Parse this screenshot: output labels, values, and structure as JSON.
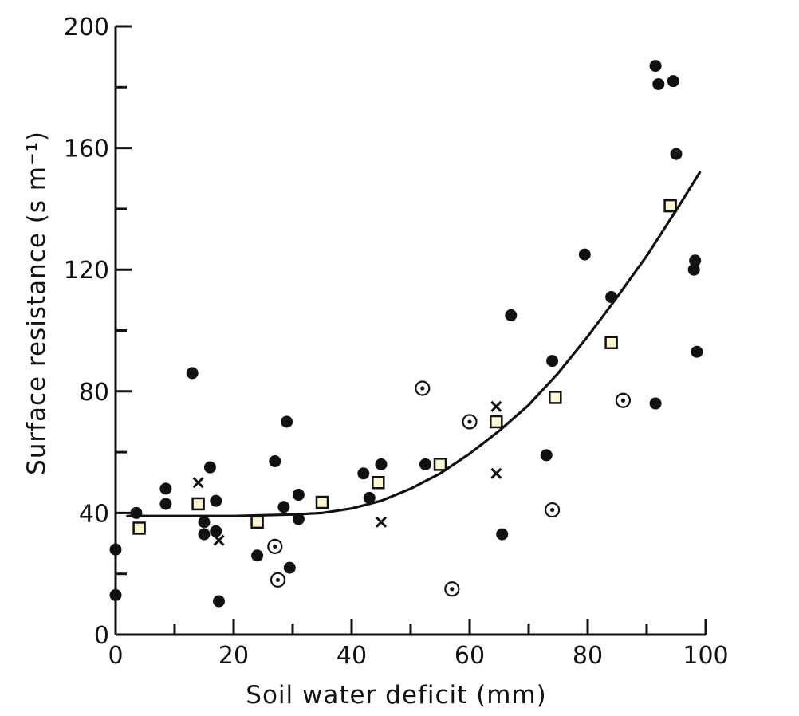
{
  "chart_data": {
    "type": "scatter",
    "title": "",
    "xlabel": "Soil water deficit (mm)",
    "ylabel": "Surface resistance (s m⁻¹)",
    "xlim": [
      0,
      100
    ],
    "ylim": [
      0,
      200
    ],
    "x_ticks": [
      "0",
      "20",
      "40",
      "60",
      "80",
      "100"
    ],
    "y_ticks": [
      "0",
      "40",
      "80",
      "120",
      "160",
      "200"
    ],
    "grid": false,
    "legend": "none",
    "series": [
      {
        "marker": "filled-circle",
        "points": [
          [
            0,
            28
          ],
          [
            0,
            13
          ],
          [
            3.5,
            40
          ],
          [
            8.5,
            43
          ],
          [
            8.5,
            48
          ],
          [
            13,
            86
          ],
          [
            15,
            37
          ],
          [
            15,
            33
          ],
          [
            16,
            55
          ],
          [
            17,
            44
          ],
          [
            17,
            34
          ],
          [
            17.5,
            11
          ],
          [
            24,
            26
          ],
          [
            27,
            57
          ],
          [
            28.5,
            42
          ],
          [
            29,
            70
          ],
          [
            29.5,
            22
          ],
          [
            31,
            38
          ],
          [
            31,
            46
          ],
          [
            42,
            53
          ],
          [
            43,
            45
          ],
          [
            45,
            56
          ],
          [
            52.5,
            56
          ],
          [
            65.5,
            33
          ],
          [
            67,
            105
          ],
          [
            73,
            59
          ],
          [
            74,
            90
          ],
          [
            79.5,
            125
          ],
          [
            84,
            111
          ],
          [
            91.5,
            76
          ],
          [
            91.5,
            187
          ],
          [
            92,
            181
          ],
          [
            94.5,
            182
          ],
          [
            95,
            158
          ],
          [
            98,
            120
          ],
          [
            98.2,
            123
          ],
          [
            98.5,
            93
          ]
        ]
      },
      {
        "marker": "open-square",
        "points": [
          [
            4,
            35
          ],
          [
            14,
            43
          ],
          [
            24,
            37
          ],
          [
            35,
            43.5
          ],
          [
            44.5,
            50
          ],
          [
            55,
            56
          ],
          [
            64.5,
            70
          ],
          [
            74.5,
            78
          ],
          [
            84,
            96
          ],
          [
            94,
            141
          ]
        ]
      },
      {
        "marker": "cross",
        "points": [
          [
            14,
            50
          ],
          [
            17.5,
            31
          ],
          [
            45,
            37
          ],
          [
            64.5,
            75
          ],
          [
            64.5,
            53
          ]
        ]
      },
      {
        "marker": "dotted-circle",
        "points": [
          [
            27,
            29
          ],
          [
            27.5,
            18
          ],
          [
            52,
            81
          ],
          [
            57,
            15
          ],
          [
            60,
            70
          ],
          [
            74,
            41
          ],
          [
            86,
            77
          ]
        ]
      }
    ],
    "fit_curve": {
      "x": [
        2,
        10,
        20,
        30,
        35,
        40,
        45,
        50,
        55,
        60,
        65,
        70,
        75,
        80,
        85,
        90,
        95,
        99
      ],
      "y": [
        39,
        39,
        39,
        39.5,
        40,
        41.5,
        44,
        48,
        53,
        59.5,
        67,
        75.5,
        86,
        98,
        111,
        124.5,
        139.5,
        152
      ]
    },
    "colors": {
      "ink": "#111111",
      "square_fill": "#fbf6d2",
      "background": "#ffffff"
    }
  }
}
